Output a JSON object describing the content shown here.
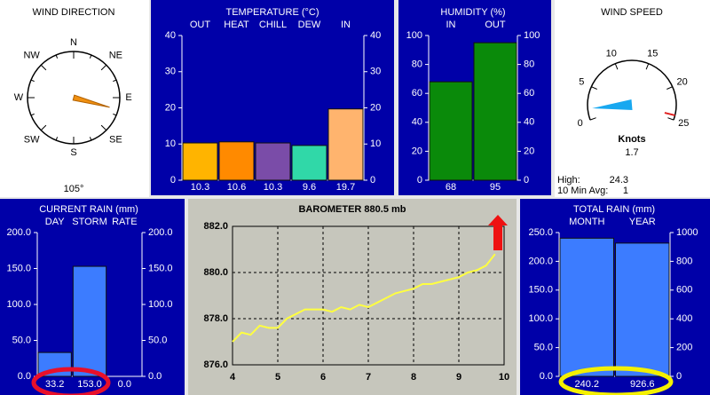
{
  "wind_direction": {
    "title": "WIND DIRECTION",
    "points": [
      "N",
      "NE",
      "E",
      "SE",
      "S",
      "SW",
      "W",
      "NW"
    ],
    "direction": {
      "value": 105,
      "label": "105°"
    }
  },
  "temperature": {
    "title": "TEMPERATURE (°C)",
    "categories": [
      "OUT",
      "HEAT",
      "CHILL",
      "DEW",
      "IN"
    ],
    "values": [
      10.3,
      10.6,
      10.3,
      9.6,
      19.7
    ],
    "colors": [
      "#ffb400",
      "#ff8a00",
      "#7a4ca8",
      "#30d8a8",
      "#ffb46e"
    ],
    "ylim": [
      0,
      40
    ],
    "yticks": [
      0,
      10,
      20,
      30,
      40
    ]
  },
  "humidity": {
    "title": "HUMIDITY (%)",
    "categories": [
      "IN",
      "OUT"
    ],
    "values": [
      68,
      95
    ],
    "color": "#0a8a0a",
    "ylim": [
      0,
      100
    ],
    "yticks": [
      0,
      20,
      40,
      60,
      80,
      100
    ]
  },
  "wind_speed": {
    "title": "WIND SPEED",
    "range": [
      0,
      25
    ],
    "ticks": [
      0,
      5,
      10,
      15,
      20,
      25
    ],
    "unit": "Knots",
    "speed": 1.7,
    "high_label": "High:",
    "high": 24.3,
    "avg_label": "10 Min Avg:",
    "avg": 1
  },
  "current_rain": {
    "title": "CURRENT RAIN (mm)",
    "categories": [
      "DAY",
      "STORM",
      "RATE"
    ],
    "values": [
      33.2,
      153.0,
      0.0
    ],
    "value_labels": [
      "33.2",
      "153.0",
      "0.0"
    ],
    "color": "#3c7cff",
    "ylim": [
      0,
      200
    ],
    "yticks": [
      {
        "value": 0,
        "label": "0.0"
      },
      {
        "value": 50,
        "label": "50.0"
      },
      {
        "value": 100,
        "label": "100.0"
      },
      {
        "value": 150,
        "label": "150.0"
      },
      {
        "value": 200,
        "label": "200.0"
      }
    ]
  },
  "barometer": {
    "title": "BAROMETER  880.5 mb",
    "color": "#ffff40",
    "x": [
      4.0,
      4.2,
      4.4,
      4.6,
      4.8,
      5.0,
      5.2,
      5.4,
      5.6,
      5.8,
      6.0,
      6.2,
      6.4,
      6.6,
      6.8,
      7.0,
      7.2,
      7.4,
      7.6,
      7.8,
      8.0,
      8.2,
      8.4,
      8.6,
      8.8,
      9.0,
      9.2,
      9.4,
      9.6,
      9.8
    ],
    "values": [
      877.0,
      877.4,
      877.3,
      877.7,
      877.6,
      877.6,
      878.0,
      878.2,
      878.4,
      878.4,
      878.4,
      878.3,
      878.5,
      878.4,
      878.6,
      878.5,
      878.7,
      878.9,
      879.1,
      879.2,
      879.3,
      879.5,
      879.5,
      879.6,
      879.7,
      879.8,
      880.0,
      880.1,
      880.3,
      880.8
    ],
    "xlim": [
      4,
      10
    ],
    "xticks": [
      4,
      5,
      6,
      7,
      8,
      9,
      10
    ],
    "ylim": [
      876,
      882
    ],
    "yticks": [
      {
        "value": 876,
        "label": "876.0"
      },
      {
        "value": 878,
        "label": "878.0"
      },
      {
        "value": 880,
        "label": "880.0"
      },
      {
        "value": 882,
        "label": "882.0"
      }
    ],
    "grid": true
  },
  "total_rain": {
    "title": "TOTAL RAIN (mm)",
    "categories": [
      "MONTH",
      "YEAR"
    ],
    "values": [
      240.2,
      926.6
    ],
    "value_labels": [
      "240.2",
      "926.6"
    ],
    "axes": [
      "y",
      "y2"
    ],
    "color": "#3c7cff",
    "ylim": [
      0,
      250
    ],
    "yticks": [
      {
        "value": 0,
        "label": "0.0"
      },
      {
        "value": 50,
        "label": "50.0"
      },
      {
        "value": 100,
        "label": "100.0"
      },
      {
        "value": 150,
        "label": "150.0"
      },
      {
        "value": 200,
        "label": "200.0"
      },
      {
        "value": 250,
        "label": "250.0"
      }
    ],
    "y2lim": [
      0,
      1000
    ],
    "y2ticks": [
      0,
      200,
      400,
      600,
      800,
      1000
    ]
  }
}
